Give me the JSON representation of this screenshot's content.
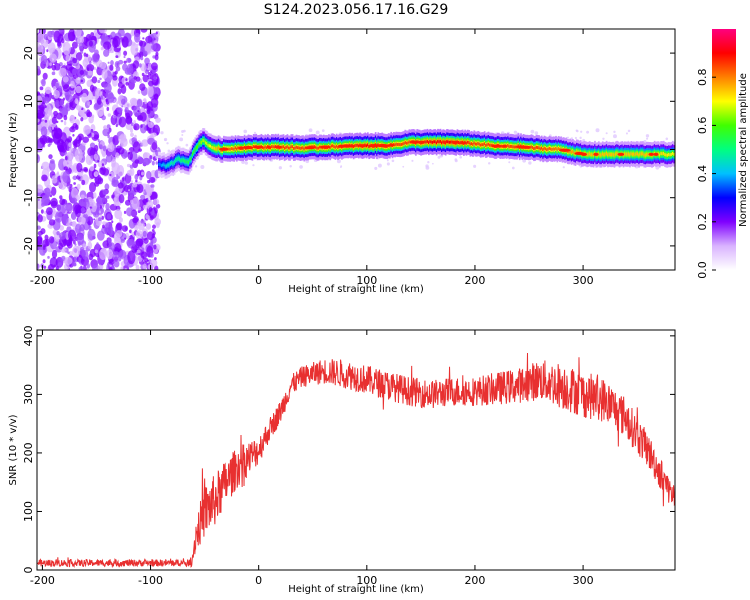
{
  "title": "S124.2023.056.17.16.G29",
  "chart_data": [
    {
      "type": "heatmap",
      "xlabel": "Height of straight line (km)",
      "ylabel": "Frequency (Hz)",
      "xlim": [
        -205,
        385
      ],
      "ylim": [
        -25,
        25
      ],
      "x_ticks": [
        -200,
        -100,
        0,
        100,
        200,
        300
      ],
      "y_ticks": [
        -20,
        -10,
        0,
        10,
        20
      ],
      "colorbar": {
        "label": "Normalized spectral amplitude",
        "range": [
          0,
          1
        ],
        "ticks": [
          0.0,
          0.2,
          0.4,
          0.6,
          0.8
        ],
        "colormap": [
          "#ffffff",
          "#d9b3ff",
          "#7f00ff",
          "#0000ff",
          "#00c0ff",
          "#00ff80",
          "#40ff00",
          "#ffff00",
          "#ff8000",
          "#ff0000",
          "#ff007f"
        ]
      },
      "noise_region_x": [
        -205,
        -93
      ],
      "ridge": {
        "x": [
          -93,
          -85,
          -75,
          -65,
          -58,
          -52,
          -45,
          -35,
          -20,
          0,
          20,
          40,
          60,
          80,
          100,
          120,
          140,
          160,
          180,
          200,
          220,
          240,
          260,
          280,
          300,
          320,
          340,
          360,
          385
        ],
        "freq": [
          -3.0,
          -3.5,
          -2.0,
          -2.5,
          0.5,
          2.0,
          0.5,
          0.0,
          0.3,
          0.5,
          0.5,
          0.3,
          0.5,
          0.7,
          0.8,
          0.8,
          1.5,
          1.5,
          1.5,
          1.2,
          0.7,
          0.6,
          0.2,
          0.0,
          -1.0,
          -1.0,
          -1.0,
          -1.0,
          -1.0
        ],
        "amplitude": [
          0.35,
          0.45,
          0.5,
          0.55,
          0.6,
          0.65,
          0.7,
          0.8,
          0.85,
          0.85,
          0.85,
          0.85,
          0.85,
          0.85,
          0.9,
          0.85,
          0.85,
          0.9,
          0.9,
          0.85,
          0.85,
          0.85,
          0.85,
          0.8,
          0.75,
          0.75,
          0.75,
          0.75,
          0.7
        ]
      }
    },
    {
      "type": "line",
      "xlabel": "Height of straight line (km)",
      "ylabel": "SNR (10 * v/v)",
      "xlim": [
        -205,
        385
      ],
      "ylim": [
        0,
        410
      ],
      "x_ticks": [
        -200,
        -100,
        0,
        100,
        200,
        300
      ],
      "y_ticks": [
        0,
        100,
        200,
        300,
        400
      ],
      "color": "#e83030",
      "series": [
        {
          "x": [
            -205,
            -180,
            -150,
            -120,
            -80,
            -62,
            -58,
            -50,
            -40,
            -30,
            -20,
            -10,
            0,
            10,
            20,
            30,
            40,
            60,
            80,
            100,
            120,
            140,
            160,
            180,
            200,
            220,
            240,
            260,
            280,
            300,
            320,
            340,
            350,
            360,
            370,
            385
          ],
          "y": [
            12,
            12,
            12,
            12,
            12,
            12,
            60,
            100,
            120,
            150,
            175,
            190,
            205,
            240,
            270,
            315,
            330,
            340,
            335,
            325,
            315,
            305,
            300,
            305,
            305,
            310,
            315,
            325,
            315,
            300,
            290,
            260,
            230,
            205,
            170,
            120
          ],
          "noise": [
            6,
            6,
            6,
            6,
            6,
            6,
            30,
            45,
            45,
            40,
            35,
            30,
            25,
            20,
            20,
            18,
            18,
            22,
            25,
            25,
            25,
            25,
            25,
            25,
            25,
            28,
            30,
            35,
            40,
            40,
            38,
            35,
            32,
            30,
            28,
            25
          ]
        }
      ]
    }
  ]
}
